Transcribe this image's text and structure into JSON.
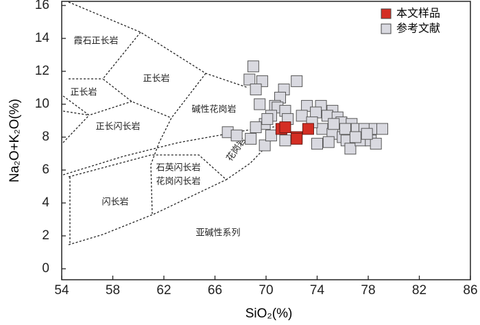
{
  "chart_data": {
    "type": "scatter",
    "xlabel": "SiO₂(%)",
    "ylabel": "Na₂O+K₂O(%)",
    "xlim": [
      54,
      86
    ],
    "xticks": [
      54,
      58,
      62,
      66,
      70,
      74,
      78,
      82,
      86
    ],
    "ylim": [
      0,
      16
    ],
    "yticks": [
      0,
      2,
      4,
      6,
      8,
      10,
      12,
      14,
      16
    ],
    "legend": "upper right",
    "annotations": [
      "霞石正长岩",
      "正长岩",
      "正长岩",
      "碱性花岗岩",
      "正长闪长岩",
      "花岗岩",
      "石英闪长岩",
      "花岗闪长岩",
      "闪长岩",
      "亚碱性系列"
    ],
    "series": [
      {
        "name": "参考文献",
        "color": "#d9d9e0",
        "x": [
          69.0,
          68.7,
          69.7,
          71.4,
          72.4,
          69.2,
          71.1,
          69.5,
          70.7,
          70.9,
          71.5,
          70.4,
          69.9,
          69.2,
          67.0,
          67.7,
          68.8,
          69.9,
          73.2,
          74.3,
          75.2,
          73.9,
          74.8,
          75.6,
          75.9,
          76.7,
          77.1,
          77.7,
          78.5,
          79.1,
          74.4,
          75.2,
          76.0,
          76.3,
          76.6,
          77.4,
          78.2,
          78.6,
          74.0,
          74.9,
          71.5,
          70.4,
          70.1,
          71.7,
          72.8,
          73.6,
          76.2,
          77.0,
          77.9,
          75.3
        ],
        "y": [
          12.3,
          11.5,
          11.4,
          10.9,
          11.4,
          10.9,
          10.4,
          10.0,
          9.9,
          9.8,
          9.6,
          9.3,
          8.8,
          8.6,
          8.3,
          8.1,
          7.9,
          7.5,
          9.9,
          9.9,
          9.6,
          9.5,
          9.3,
          9.2,
          8.9,
          8.8,
          8.5,
          8.5,
          8.5,
          8.5,
          8.5,
          8.2,
          8.0,
          7.8,
          7.3,
          7.8,
          7.8,
          7.6,
          7.6,
          7.7,
          7.8,
          8.1,
          9.1,
          9.1,
          9.3,
          8.9,
          8.5,
          8.0,
          8.2,
          8.8
        ]
      },
      {
        "name": "本文样品",
        "color": "#d42e24",
        "x": [
          71.2,
          71.5,
          72.4,
          73.3,
          72.4
        ],
        "y": [
          8.5,
          8.6,
          8.0,
          8.5,
          7.9
        ]
      }
    ]
  }
}
